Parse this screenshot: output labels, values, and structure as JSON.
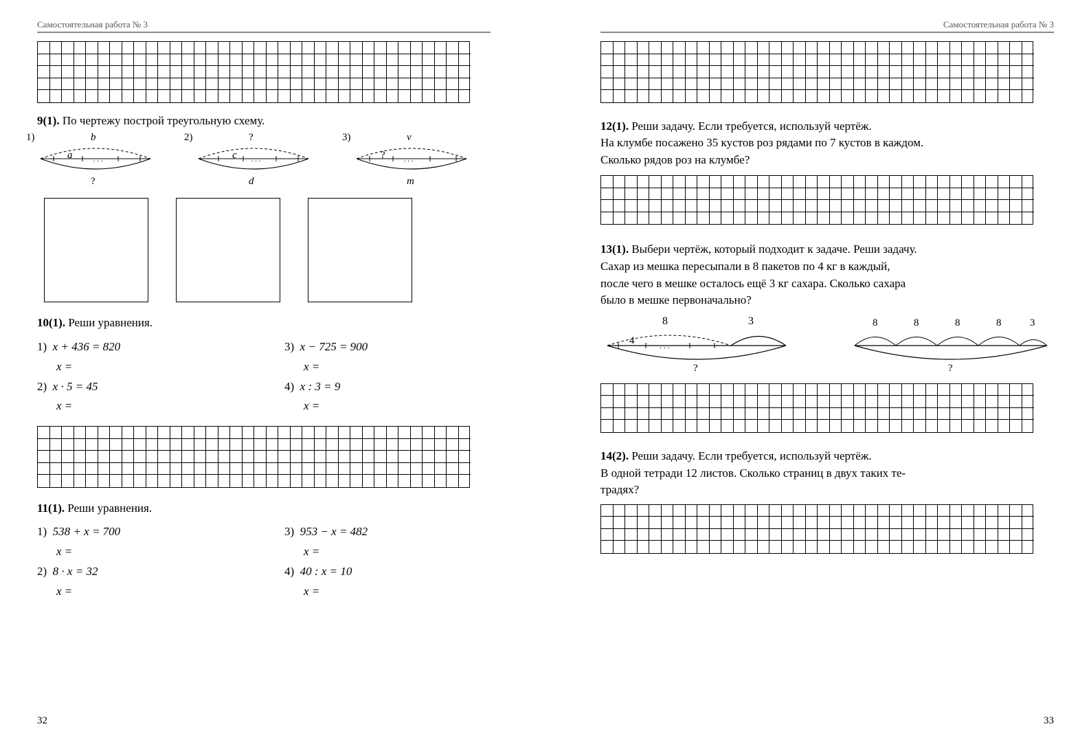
{
  "header": "Самостоятельная работа № 3",
  "page_left_num": "32",
  "page_right_num": "33",
  "grid_style": {
    "cell": 18,
    "rows_small": 4,
    "cols": 38,
    "rows_med": 5,
    "border_color": "#000000",
    "line_color": "#000000"
  },
  "t9": {
    "num": "9(1).",
    "text": "По чертежу построй треугольную схему.",
    "items": [
      {
        "n": "1)",
        "top": "b",
        "mid": "a",
        "bot": "?"
      },
      {
        "n": "2)",
        "top": "?",
        "mid": "c",
        "bot": "d"
      },
      {
        "n": "3)",
        "top": "v",
        "mid": "?",
        "bot": "m"
      }
    ]
  },
  "t10": {
    "num": "10(1).",
    "title": "Реши уравнения.",
    "cols": [
      [
        {
          "n": "1)",
          "eq": "x  +  436  =  820"
        },
        {
          "n": "2)",
          "eq": "x  ·  5  =  45"
        }
      ],
      [
        {
          "n": "3)",
          "eq": "x  −  725  =  900"
        },
        {
          "n": "4)",
          "eq": "x  :  3  =  9"
        }
      ]
    ],
    "ans": "x  ="
  },
  "t11": {
    "num": "11(1).",
    "title": "Реши уравнения.",
    "cols": [
      [
        {
          "n": "1)",
          "eq": "538  +  x  =  700"
        },
        {
          "n": "2)",
          "eq": "8  ·  x  =  32"
        }
      ],
      [
        {
          "n": "3)",
          "eq": "953  −  x  =  482"
        },
        {
          "n": "4)",
          "eq": "40  :  x  =  10"
        }
      ]
    ],
    "ans": "x  ="
  },
  "t12": {
    "num": "12(1).",
    "l1": "Реши  задачу.  Если  требуется,  используй  чертёж.",
    "l2": "На  клумбе  посажено  35  кустов  роз  рядами  по  7  кустов  в  каждом.",
    "l3": "Сколько  рядов  роз  на  клумбе?"
  },
  "t13": {
    "num": "13(1).",
    "l1": "Выбери  чертёж,  который  подходит  к  задаче.  Реши  задачу.",
    "l2": "Сахар  из  мешка  пересыпали  в  8  пакетов  по  4  кг  в  каждый,",
    "l3": "после  чего  в  мешке  осталось  ещё  3  кг  сахара.  Сколько  сахара",
    "l4": "было  в  мешке  первоначально?",
    "d1_labels": {
      "top_left": "8",
      "top_right": "3",
      "mid": "4",
      "bot": "?"
    },
    "d2_labels": {
      "top": [
        "8",
        "8",
        "8",
        "8",
        "3"
      ],
      "bot": "?"
    }
  },
  "t14": {
    "num": "14(2).",
    "l1": "Реши  задачу.  Если  требуется,  используй  чертёж.",
    "l2": "В  одной  тетради  12  листов.  Сколько  страниц  в  двух  таких  те-",
    "l3": "традях?"
  }
}
